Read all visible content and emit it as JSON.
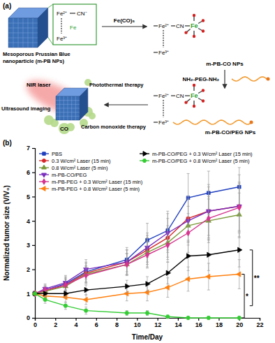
{
  "diagram": {
    "label": "(a)",
    "nanoparticle_label": [
      "Mesoporous Prussian Blue",
      "nanoparticle (m-PB NPs)"
    ],
    "ions": {
      "fe2": "Fe²⁺",
      "cn": "CN⁻",
      "cn_bridge": "CN",
      "fe3": "Fe³⁺",
      "fe": "Fe"
    },
    "reagent_1": "Fe(CO)₅",
    "product_1": "m-PB-CO NPs",
    "reagent_2": "NH₂-PEG-NH₂",
    "product_2": "m-PB-CO/PEG NPs",
    "laser": "NIR laser",
    "therapies": [
      "Photothermal therapy",
      "Ultrasound imaging",
      "Carbon monoxide therapy"
    ],
    "gas": "CO"
  },
  "chart_data": {
    "type": "line",
    "panel_label": "(b)",
    "x_label": "Time/Day",
    "y_label": "Normalized tumor size (V/V₀)",
    "x": [
      0,
      1,
      3,
      5,
      9,
      11,
      13,
      15,
      17,
      20
    ],
    "xlim": [
      0,
      22
    ],
    "xticks": [
      0,
      2,
      4,
      6,
      8,
      10,
      12,
      14,
      16,
      18,
      20,
      22
    ],
    "ylim": [
      0,
      7
    ],
    "yticks": [
      0,
      1,
      2,
      3,
      4,
      5,
      6,
      7
    ],
    "grid": false,
    "legend": "upper left",
    "series": [
      {
        "name": "PBS",
        "color": "#1f3fbf",
        "marker": "square",
        "values": [
          1,
          1.15,
          1.4,
          1.9,
          2.4,
          3.2,
          3.6,
          4.95,
          5.15,
          5.4
        ],
        "errors": [
          0,
          0.2,
          0.3,
          0.4,
          0.5,
          0.7,
          0.8,
          1.0,
          0.9,
          0.8
        ]
      },
      {
        "name": "0.3 W/cm² Laser (15 min)",
        "color": "#d62728",
        "marker": "circle",
        "values": [
          1,
          1.1,
          1.35,
          1.85,
          2.3,
          2.8,
          3.3,
          4.1,
          4.4,
          4.6
        ],
        "errors": [
          0,
          0.2,
          0.3,
          0.4,
          0.5,
          0.6,
          0.8,
          0.9,
          1.0,
          1.0
        ]
      },
      {
        "name": "0.8 W/cm² Laser (5 min)",
        "color": "#7a9a3a",
        "marker": "triangle-up",
        "values": [
          1,
          1.1,
          1.3,
          1.8,
          2.2,
          2.7,
          3.1,
          3.8,
          4.0,
          4.25
        ],
        "errors": [
          0,
          0.15,
          0.3,
          0.35,
          0.45,
          0.6,
          0.7,
          0.8,
          0.9,
          0.9
        ]
      },
      {
        "name": "m-PB-CO/PEG",
        "color": "#7b2fbe",
        "marker": "triangle-down",
        "values": [
          1,
          1.2,
          1.45,
          2.0,
          2.3,
          2.9,
          3.5,
          4.0,
          4.4,
          4.6
        ],
        "errors": [
          0,
          0.2,
          0.3,
          0.4,
          0.5,
          0.6,
          0.8,
          0.9,
          1.1,
          1.3
        ]
      },
      {
        "name": "m-PB-PEG + 0.3 W/cm² Laser (15 min)",
        "color": "#d6338f",
        "marker": "diamond",
        "values": [
          1,
          1.15,
          1.35,
          1.75,
          2.2,
          2.6,
          3.0,
          3.5,
          4.1,
          4.55
        ],
        "errors": [
          0,
          0.15,
          0.25,
          0.35,
          0.45,
          0.55,
          0.7,
          0.8,
          0.9,
          1.0
        ]
      },
      {
        "name": "m-PB-PEG + 0.8 W/cm² Laser (5 min)",
        "color": "#ff7f0e",
        "marker": "triangle-left",
        "values": [
          1,
          0.9,
          0.85,
          0.75,
          1.0,
          1.05,
          1.25,
          1.6,
          1.7,
          1.8
        ],
        "errors": [
          0,
          0.15,
          0.2,
          0.2,
          0.3,
          0.35,
          0.4,
          0.5,
          0.55,
          0.6
        ]
      },
      {
        "name": "m-PB-CO/PEG + 0.3 W/cm² Laser (15 min)",
        "color": "#000000",
        "marker": "triangle-right",
        "values": [
          1,
          1.0,
          1.0,
          1.15,
          1.3,
          1.4,
          1.85,
          2.55,
          2.6,
          2.8
        ],
        "errors": [
          0,
          0.1,
          0.15,
          0.2,
          0.25,
          0.3,
          0.45,
          0.6,
          0.65,
          0.7
        ]
      },
      {
        "name": "m-PB-CO/PEG + 0.8 W/cm² Laser (5 min)",
        "color": "#33cc33",
        "marker": "hexagon",
        "values": [
          1,
          0.75,
          0.5,
          0.3,
          0.2,
          0.2,
          0.05,
          0,
          0,
          0
        ],
        "errors": [
          0,
          0.15,
          0.15,
          0.15,
          0.1,
          0.1,
          0.05,
          0,
          0,
          0
        ]
      }
    ],
    "annotations": [
      {
        "text": "**",
        "x": 21.3,
        "y": [
          2.8,
          0.5
        ]
      },
      {
        "text": "*",
        "x": 20.5,
        "y": [
          1.8,
          0
        ]
      }
    ]
  }
}
